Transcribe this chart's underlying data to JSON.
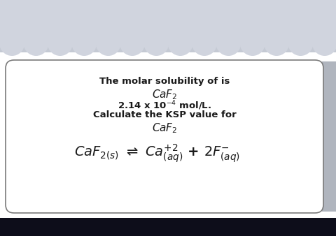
{
  "fig_w": 4.81,
  "fig_h": 3.38,
  "dpi": 100,
  "bg_grey": "#c5cad4",
  "bg_white": "#ffffff",
  "scallop_color": "#d0d4de",
  "scallop_fill": "#dde0e8",
  "card_bg": "#ffffff",
  "card_edge_color": "#7a7a7a",
  "bottom_bar_color": "#0d0d1a",
  "text_color": "#1a1a1a",
  "line1": "The molar solubility of is",
  "line2": "$\\mathit{CaF_2}$",
  "line3": "2.14 x 10$^{-4}$ mol/L.",
  "line4": "Calculate the KSP value for",
  "line5": "$\\mathit{CaF_2}$",
  "equation": "$\\mathit{CaF_{2(s)}}$ $\\rightleftharpoons$ $\\mathit{Ca^{+2}_{(aq)}}$ + $\\mathit{2F^{-}_{(aq)}}$"
}
